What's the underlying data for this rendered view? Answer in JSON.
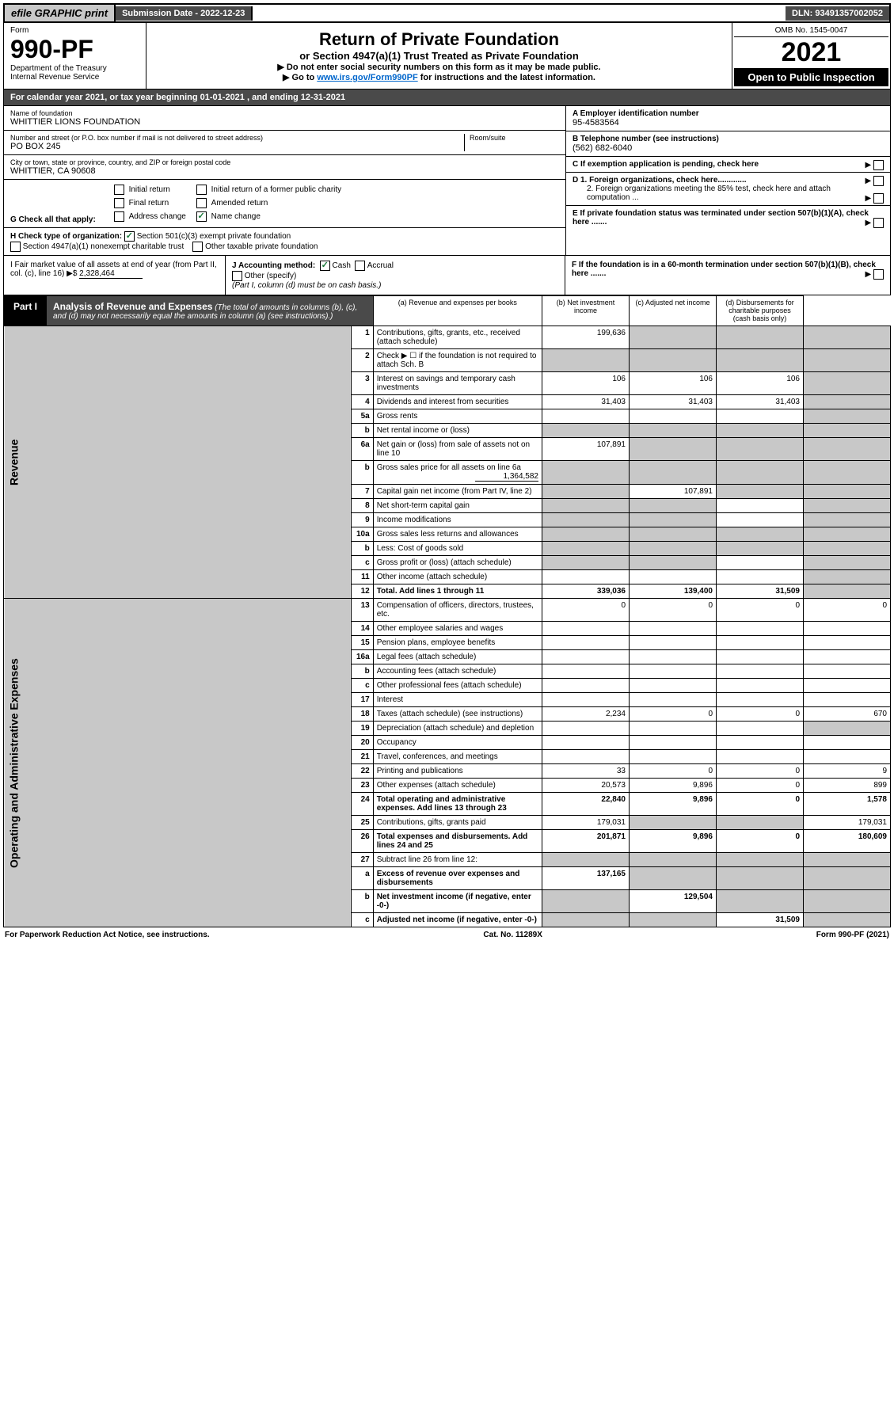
{
  "top": {
    "efile": "efile GRAPHIC print",
    "submission_label": "Submission Date - 2022-12-23",
    "dln": "DLN: 93491357002052"
  },
  "header": {
    "form_label": "Form",
    "form_no": "990-PF",
    "dept": "Department of the Treasury",
    "irs": "Internal Revenue Service",
    "title": "Return of Private Foundation",
    "subtitle": "or Section 4947(a)(1) Trust Treated as Private Foundation",
    "instr1": "▶ Do not enter social security numbers on this form as it may be made public.",
    "instr2_pre": "▶ Go to ",
    "instr2_link": "www.irs.gov/Form990PF",
    "instr2_post": " for instructions and the latest information.",
    "omb": "OMB No. 1545-0047",
    "year": "2021",
    "open": "Open to Public Inspection"
  },
  "cal_year": "For calendar year 2021, or tax year beginning 01-01-2021            , and ending 12-31-2021",
  "entity": {
    "name_label": "Name of foundation",
    "name": "WHITTIER LIONS FOUNDATION",
    "addr_label": "Number and street (or P.O. box number if mail is not delivered to street address)",
    "addr": "PO BOX 245",
    "room_label": "Room/suite",
    "city_label": "City or town, state or province, country, and ZIP or foreign postal code",
    "city": "WHITTIER, CA  90608",
    "ein_label": "A Employer identification number",
    "ein": "95-4583564",
    "tel_label": "B Telephone number (see instructions)",
    "tel": "(562) 682-6040",
    "c_label": "C If exemption application is pending, check here",
    "d1_label": "D 1. Foreign organizations, check here.............",
    "d2_label": "2. Foreign organizations meeting the 85% test, check here and attach computation ...",
    "e_label": "E If private foundation status was terminated under section 507(b)(1)(A), check here .......",
    "f_label": "F If the foundation is in a 60-month termination under section 507(b)(1)(B), check here ......."
  },
  "g": {
    "label": "G Check all that apply:",
    "opts": [
      "Initial return",
      "Initial return of a former public charity",
      "Final return",
      "Amended return",
      "Address change",
      "Name change"
    ]
  },
  "h": {
    "label": "H Check type of organization:",
    "opt1": "Section 501(c)(3) exempt private foundation",
    "opt2": "Section 4947(a)(1) nonexempt charitable trust",
    "opt3": "Other taxable private foundation"
  },
  "i": {
    "label": "I Fair market value of all assets at end of year (from Part II, col. (c), line 16) ▶$ ",
    "val": "2,328,464"
  },
  "j": {
    "label": "J Accounting method:",
    "cash": "Cash",
    "accrual": "Accrual",
    "other": "Other (specify)",
    "note": "(Part I, column (d) must be on cash basis.)"
  },
  "part1": {
    "label": "Part I",
    "title": "Analysis of Revenue and Expenses",
    "note": " (The total of amounts in columns (b), (c), and (d) may not necessarily equal the amounts in column (a) (see instructions).)",
    "col_a": "(a)  Revenue and expenses per books",
    "col_b": "(b)  Net investment income",
    "col_c": "(c)  Adjusted net income",
    "col_d": "(d)  Disbursements for charitable purposes (cash basis only)"
  },
  "sections": {
    "revenue": "Revenue",
    "operating": "Operating and Administrative Expenses"
  },
  "rows": [
    {
      "n": "1",
      "d": "Contributions, gifts, grants, etc., received (attach schedule)",
      "a": "199,636",
      "b_shade": true,
      "c_shade": true,
      "d_shade": true
    },
    {
      "n": "2",
      "d": "Check ▶ ☐ if the foundation is not required to attach Sch. B",
      "a_shade": true,
      "b_shade": true,
      "c_shade": true,
      "d_shade": true
    },
    {
      "n": "3",
      "d": "Interest on savings and temporary cash investments",
      "a": "106",
      "b": "106",
      "c": "106",
      "d_shade": true
    },
    {
      "n": "4",
      "d": "Dividends and interest from securities",
      "a": "31,403",
      "b": "31,403",
      "c": "31,403",
      "d_shade": true
    },
    {
      "n": "5a",
      "d": "Gross rents",
      "d_shade": true
    },
    {
      "n": "b",
      "d": "Net rental income or (loss)",
      "a_shade": true,
      "b_shade": true,
      "c_shade": true,
      "d_shade": true
    },
    {
      "n": "6a",
      "d": "Net gain or (loss) from sale of assets not on line 10",
      "a": "107,891",
      "b_shade": true,
      "c_shade": true,
      "d_shade": true
    },
    {
      "n": "b",
      "d": "Gross sales price for all assets on line 6a",
      "inline_val": "1,364,582",
      "a_shade": true,
      "b_shade": true,
      "c_shade": true,
      "d_shade": true
    },
    {
      "n": "7",
      "d": "Capital gain net income (from Part IV, line 2)",
      "a_shade": true,
      "b": "107,891",
      "c_shade": true,
      "d_shade": true
    },
    {
      "n": "8",
      "d": "Net short-term capital gain",
      "a_shade": true,
      "b_shade": true,
      "d_shade": true
    },
    {
      "n": "9",
      "d": "Income modifications",
      "a_shade": true,
      "b_shade": true,
      "d_shade": true
    },
    {
      "n": "10a",
      "d": "Gross sales less returns and allowances",
      "a_shade": true,
      "b_shade": true,
      "c_shade": true,
      "d_shade": true
    },
    {
      "n": "b",
      "d": "Less: Cost of goods sold",
      "a_shade": true,
      "b_shade": true,
      "c_shade": true,
      "d_shade": true
    },
    {
      "n": "c",
      "d": "Gross profit or (loss) (attach schedule)",
      "a_shade": true,
      "b_shade": true,
      "d_shade": true
    },
    {
      "n": "11",
      "d": "Other income (attach schedule)",
      "d_shade": true
    },
    {
      "n": "12",
      "d": "Total. Add lines 1 through 11",
      "bold": true,
      "a": "339,036",
      "b": "139,400",
      "c": "31,509",
      "d_shade": true
    }
  ],
  "exp_rows": [
    {
      "n": "13",
      "d": "Compensation of officers, directors, trustees, etc.",
      "a": "0",
      "b": "0",
      "c": "0",
      "dd": "0"
    },
    {
      "n": "14",
      "d": "Other employee salaries and wages"
    },
    {
      "n": "15",
      "d": "Pension plans, employee benefits"
    },
    {
      "n": "16a",
      "d": "Legal fees (attach schedule)"
    },
    {
      "n": "b",
      "d": "Accounting fees (attach schedule)"
    },
    {
      "n": "c",
      "d": "Other professional fees (attach schedule)"
    },
    {
      "n": "17",
      "d": "Interest"
    },
    {
      "n": "18",
      "d": "Taxes (attach schedule) (see instructions)",
      "a": "2,234",
      "b": "0",
      "c": "0",
      "dd": "670"
    },
    {
      "n": "19",
      "d": "Depreciation (attach schedule) and depletion",
      "d_shade": true
    },
    {
      "n": "20",
      "d": "Occupancy"
    },
    {
      "n": "21",
      "d": "Travel, conferences, and meetings"
    },
    {
      "n": "22",
      "d": "Printing and publications",
      "a": "33",
      "b": "0",
      "c": "0",
      "dd": "9"
    },
    {
      "n": "23",
      "d": "Other expenses (attach schedule)",
      "a": "20,573",
      "b": "9,896",
      "c": "0",
      "dd": "899"
    },
    {
      "n": "24",
      "d": "Total operating and administrative expenses. Add lines 13 through 23",
      "bold": true,
      "a": "22,840",
      "b": "9,896",
      "c": "0",
      "dd": "1,578"
    },
    {
      "n": "25",
      "d": "Contributions, gifts, grants paid",
      "a": "179,031",
      "b_shade": true,
      "c_shade": true,
      "dd": "179,031"
    },
    {
      "n": "26",
      "d": "Total expenses and disbursements. Add lines 24 and 25",
      "bold": true,
      "a": "201,871",
      "b": "9,896",
      "c": "0",
      "dd": "180,609"
    },
    {
      "n": "27",
      "d": "Subtract line 26 from line 12:",
      "a_shade": true,
      "b_shade": true,
      "c_shade": true,
      "d_shade": true
    },
    {
      "n": "a",
      "d": "Excess of revenue over expenses and disbursements",
      "bold": true,
      "a": "137,165",
      "b_shade": true,
      "c_shade": true,
      "d_shade": true
    },
    {
      "n": "b",
      "d": "Net investment income (if negative, enter -0-)",
      "bold": true,
      "a_shade": true,
      "b": "129,504",
      "c_shade": true,
      "d_shade": true
    },
    {
      "n": "c",
      "d": "Adjusted net income (if negative, enter -0-)",
      "bold": true,
      "a_shade": true,
      "b_shade": true,
      "c": "31,509",
      "d_shade": true
    }
  ],
  "footer": {
    "left": "For Paperwork Reduction Act Notice, see instructions.",
    "mid": "Cat. No. 11289X",
    "right": "Form 990-PF (2021)"
  }
}
